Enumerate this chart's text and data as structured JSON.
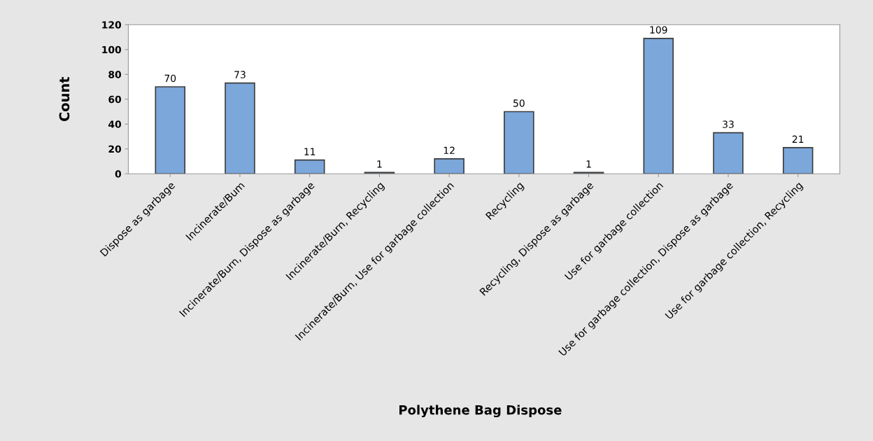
{
  "chart_data": {
    "type": "bar",
    "xlabel": "Polythene Bag Dispose",
    "ylabel": "Count",
    "categories": [
      "Dispose as garbage",
      "Incinerate/Bum",
      "Incinerate/Burn, Dispose as garbage",
      "Incinerate/Burn, Recycling",
      "Incinerate/Burn, Use for garbage collection",
      "Recycling",
      "Recycling, Dispose as garbage",
      "Use for garbage collection",
      "Use for garbage collection, Dispose as garbage",
      "Use for garbage collection, Recycling"
    ],
    "values": [
      70,
      73,
      11,
      1,
      12,
      50,
      1,
      109,
      33,
      21
    ],
    "color": "#7ba7db",
    "ylim": [
      0,
      120
    ],
    "yticks": [
      0,
      20,
      40,
      60,
      80,
      100,
      120
    ],
    "grid": false,
    "data_labels": true,
    "legend": false
  }
}
